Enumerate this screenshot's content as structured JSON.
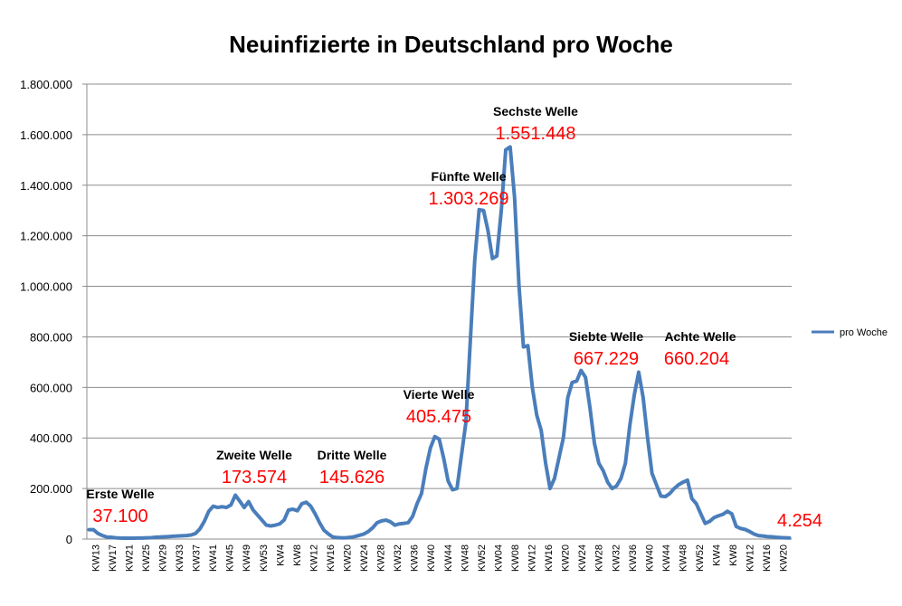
{
  "chart_data": {
    "type": "line",
    "title": "Neuinfizierte in Deutschland pro Woche",
    "xlabel": "",
    "ylabel": "",
    "ylim": [
      0,
      1800000
    ],
    "y_ticks": [
      "0",
      "200.000",
      "400.000",
      "600.000",
      "800.000",
      "1.000.000",
      "1.200.000",
      "1.400.000",
      "1.600.000",
      "1.800.000"
    ],
    "y_tick_values": [
      0,
      200000,
      400000,
      600000,
      800000,
      1000000,
      1200000,
      1400000,
      1600000,
      1800000
    ],
    "grid": true,
    "legend_position": "right",
    "x_ticks": [
      "KW13",
      "KW17",
      "KW21",
      "KW25",
      "KW29",
      "KW33",
      "KW37",
      "KW41",
      "KW45",
      "KW49",
      "KW53",
      "KW4",
      "KW8",
      "KW12",
      "KW16",
      "KW20",
      "KW24",
      "KW28",
      "KW32",
      "KW36",
      "KW40",
      "KW44",
      "KW48",
      "KW52",
      "KW04",
      "KW08",
      "KW12",
      "KW16",
      "KW20",
      "KW24",
      "KW28",
      "KW32",
      "KW36",
      "KW40",
      "KW44",
      "KW48",
      "KW52",
      "KW4",
      "KW8",
      "KW12",
      "KW16",
      "KW20"
    ],
    "series": [
      {
        "name": "pro Woche",
        "color": "#4a7ebb",
        "values": [
          37100,
          37100,
          22000,
          14000,
          8000,
          7000,
          5000,
          4000,
          3500,
          3500,
          3500,
          4000,
          4000,
          5000,
          5500,
          7000,
          8000,
          9000,
          10000,
          11000,
          12000,
          13000,
          14000,
          16000,
          22000,
          40000,
          70000,
          110000,
          130000,
          125000,
          128000,
          125000,
          135000,
          173574,
          150000,
          125000,
          148000,
          115000,
          95000,
          75000,
          55000,
          52000,
          55000,
          60000,
          75000,
          115000,
          118000,
          112000,
          140000,
          145626,
          130000,
          100000,
          65000,
          35000,
          20000,
          8000,
          6000,
          5000,
          5000,
          7000,
          10000,
          15000,
          20000,
          30000,
          45000,
          65000,
          72000,
          75000,
          68000,
          55000,
          60000,
          62000,
          65000,
          90000,
          140000,
          180000,
          280000,
          360000,
          405475,
          395000,
          320000,
          230000,
          195000,
          200000,
          330000,
          460000,
          780000,
          1100000,
          1303269,
          1300000,
          1220000,
          1110000,
          1120000,
          1300000,
          1540000,
          1551448,
          1350000,
          1000000,
          760000,
          765000,
          600000,
          490000,
          430000,
          300000,
          200000,
          240000,
          320000,
          400000,
          560000,
          620000,
          625000,
          667229,
          640000,
          520000,
          380000,
          300000,
          270000,
          225000,
          200000,
          210000,
          240000,
          300000,
          450000,
          570000,
          660204,
          560000,
          400000,
          260000,
          215000,
          170000,
          168000,
          180000,
          200000,
          215000,
          225000,
          233000,
          160000,
          140000,
          100000,
          62000,
          70000,
          85000,
          92000,
          98000,
          110000,
          100000,
          50000,
          42000,
          38000,
          30000,
          20000,
          14000,
          12000,
          10000,
          9000,
          7000,
          6000,
          5000,
          4254
        ]
      }
    ],
    "annotations": [
      {
        "label": "Erste Welle",
        "value": "37.100"
      },
      {
        "label": "Zweite Welle",
        "value": "173.574"
      },
      {
        "label": "Dritte Welle",
        "value": "145.626"
      },
      {
        "label": "Vierte Welle",
        "value": "405.475"
      },
      {
        "label": "Fünfte Welle",
        "value": "1.303.269"
      },
      {
        "label": "Sechste Welle",
        "value": "1.551.448"
      },
      {
        "label": "Siebte Welle",
        "value": "667.229"
      },
      {
        "label": "Achte Welle",
        "value": "660.204"
      },
      {
        "label": "",
        "value": "4.254"
      }
    ]
  }
}
